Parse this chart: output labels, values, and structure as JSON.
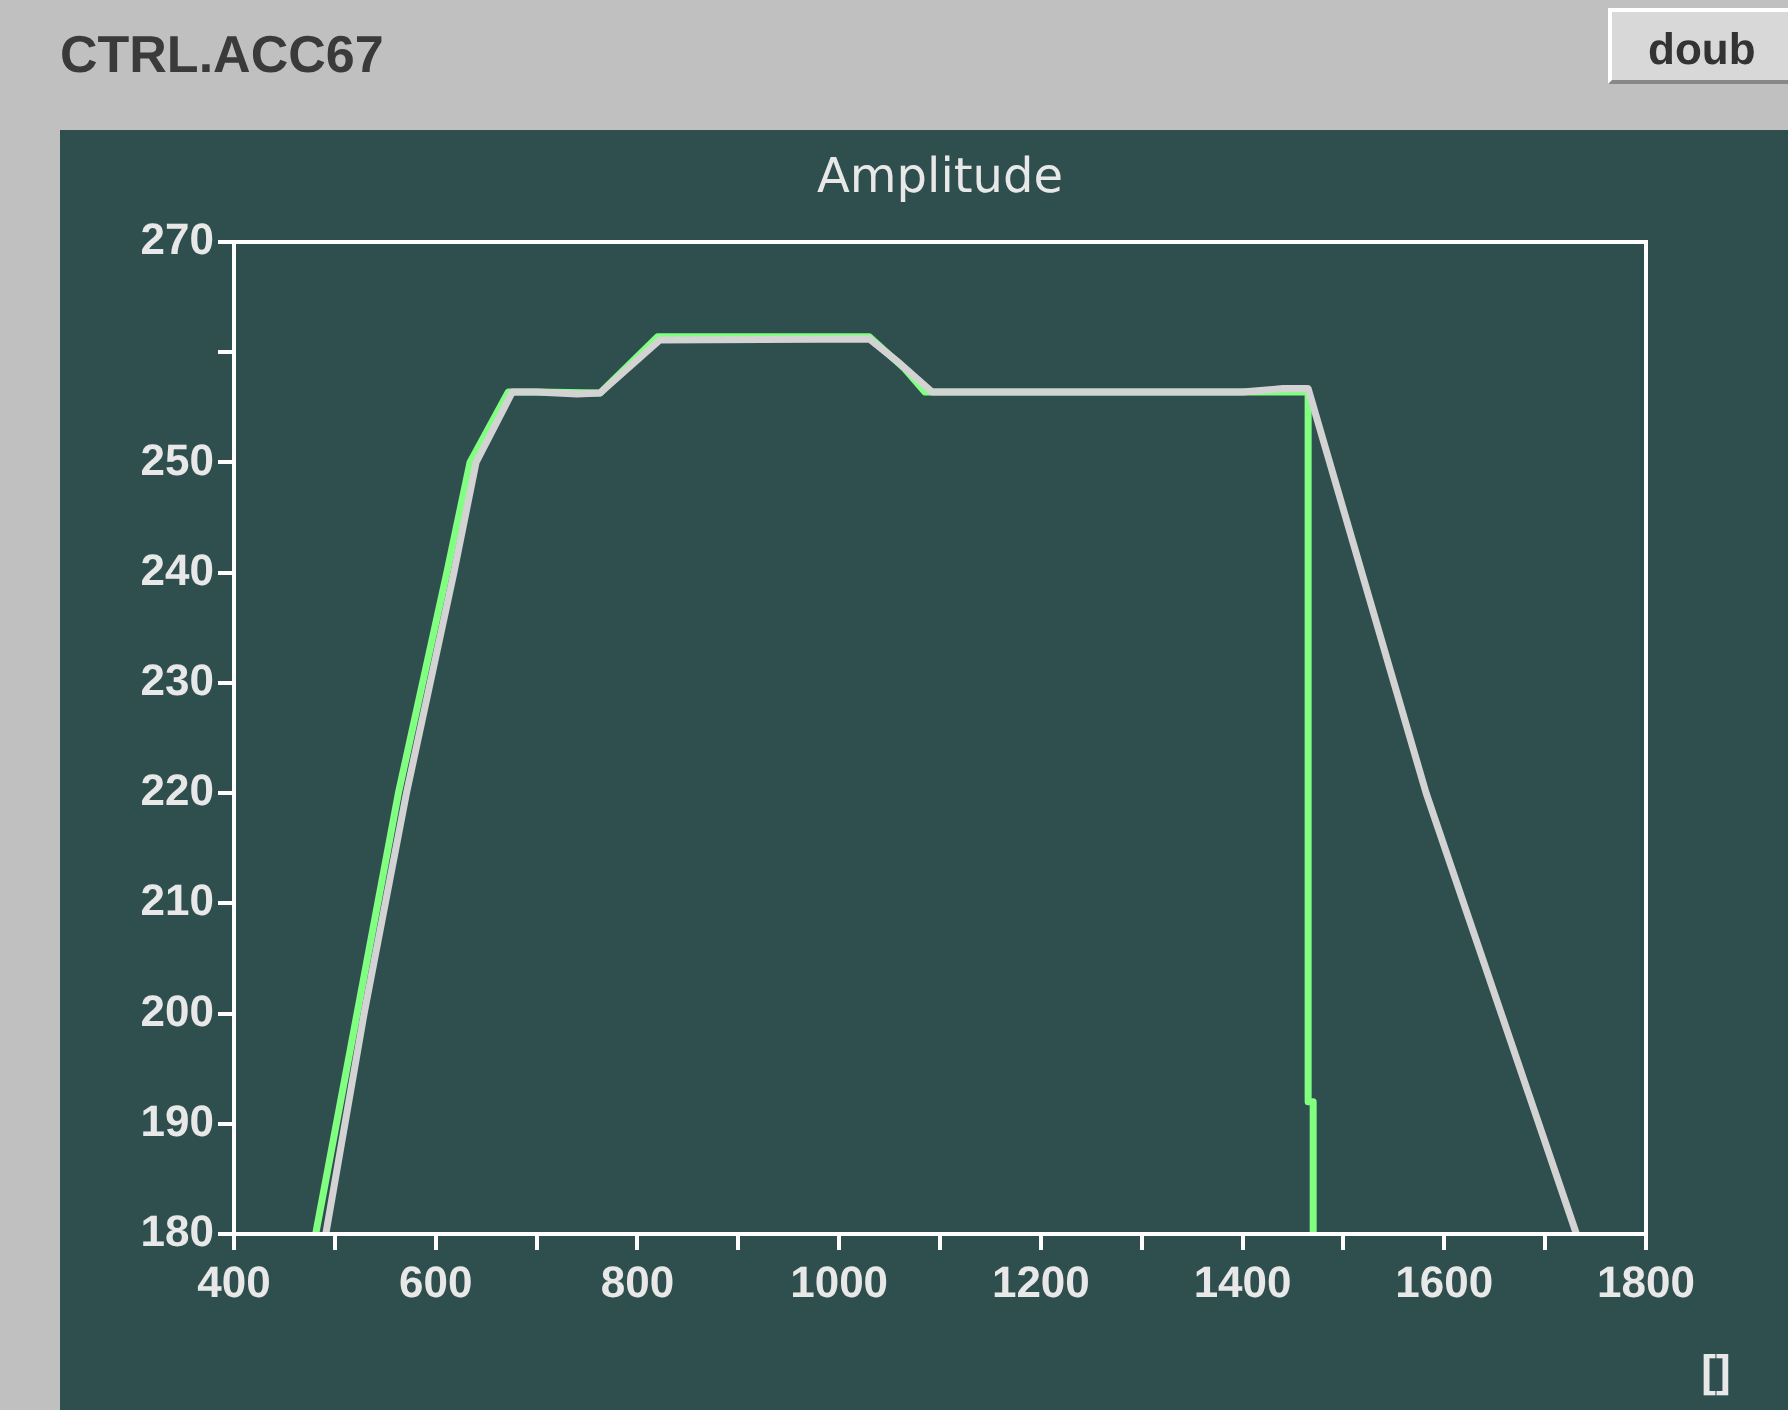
{
  "chart_data": {
    "type": "line",
    "title": "Amplitude",
    "xlabel": "[]",
    "annotations": [
      "CTRL.ACC67",
      "doub"
    ],
    "xlim": [
      400,
      1800
    ],
    "ylim": [
      180,
      270
    ],
    "xticks": [
      400,
      {
        "value": 500,
        "label": null
      },
      600,
      {
        "value": 700,
        "label": null
      },
      800,
      {
        "value": 900,
        "label": null
      },
      1000,
      {
        "value": 1100,
        "label": null
      },
      1200,
      {
        "value": 1300,
        "label": null
      },
      1400,
      {
        "value": 1500,
        "label": null
      },
      1600,
      {
        "value": 1700,
        "label": null
      },
      1800
    ],
    "yticks": [
      180,
      190,
      200,
      210,
      220,
      230,
      240,
      250,
      {
        "value": 260,
        "label": null
      },
      270
    ],
    "grid": false,
    "legend": false,
    "marker": "none",
    "line_style": "solid",
    "series": [
      {
        "color": "#d3d3d3",
        "x": [
          491,
          529,
          571,
          618,
          640,
          676,
          700,
          740,
          763,
          822,
          1030,
          1060,
          1092,
          1400,
          1440,
          1465,
          1582,
          1731
        ],
        "values": [
          180,
          200,
          220,
          240,
          250,
          256.4,
          256.4,
          256.2,
          256.3,
          261.1,
          261.2,
          259,
          256.4,
          256.4,
          256.7,
          256.7,
          220,
          180
        ]
      },
      {
        "color": "#80ff80",
        "x": [
          481,
          522,
          563,
          611,
          634,
          672,
          700,
          763,
          820,
          1030,
          1065,
          1085,
          1440,
          1465,
          1465,
          1470,
          1470
        ],
        "values": [
          180,
          200,
          220,
          240,
          250,
          256.4,
          256.4,
          256.3,
          261.4,
          261.4,
          258.5,
          256.4,
          256.4,
          256.4,
          192,
          192,
          180
        ]
      }
    ]
  }
}
